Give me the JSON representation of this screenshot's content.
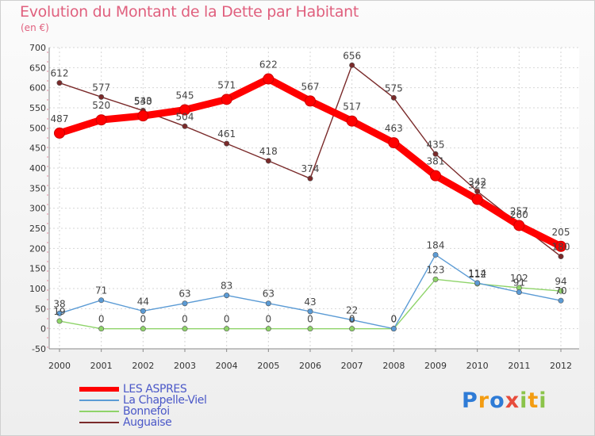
{
  "chart_data": {
    "type": "line",
    "title": "Evolution du Montant de la Dette par Habitant",
    "subtitle": "(en €)",
    "x": [
      "2000",
      "2001",
      "2002",
      "2003",
      "2004",
      "2005",
      "2006",
      "2007",
      "2008",
      "2009",
      "2010",
      "2011",
      "2012"
    ],
    "yticks": [
      "700",
      "650",
      "600",
      "550",
      "500",
      "450",
      "400",
      "350",
      "300",
      "250",
      "200",
      "150",
      "100",
      "50",
      "0",
      "-50"
    ],
    "ylim": [
      -50,
      700
    ],
    "grid": true,
    "legend_position": "bottom-left",
    "series": [
      {
        "name": "LES ASPRES",
        "color": "#ff0000",
        "values": [
          487,
          520,
          530,
          545,
          571,
          622,
          567,
          517,
          463,
          381,
          322,
          257,
          205
        ],
        "labels": [
          "487",
          "520",
          "530",
          "545",
          "571",
          "622",
          "567",
          "517",
          "463",
          "381",
          "322",
          "257",
          "205"
        ]
      },
      {
        "name": "La Chapelle-Viel",
        "color": "#5b9bd5",
        "values": [
          38,
          71,
          44,
          63,
          83,
          63,
          43,
          22,
          0,
          184,
          114,
          91,
          70
        ],
        "labels": [
          "38",
          "71",
          "44",
          "63",
          "83",
          "63",
          "43",
          "22",
          "0",
          "184",
          "114",
          "91",
          "70"
        ]
      },
      {
        "name": "Bonnefoi",
        "color": "#8fd46a",
        "values": [
          19,
          0,
          0,
          0,
          0,
          0,
          0,
          0,
          0,
          123,
          112,
          102,
          94
        ],
        "labels": [
          "19",
          "0",
          "0",
          "0",
          "0",
          "0",
          "0",
          "0",
          "0",
          "123",
          "112",
          "102",
          "94"
        ]
      },
      {
        "name": "Auguaise",
        "color": "#7a2a2a",
        "values": [
          612,
          577,
          543,
          504,
          461,
          418,
          374,
          656,
          575,
          435,
          342,
          260,
          180
        ],
        "labels": [
          "612",
          "577",
          "543",
          "504",
          "461",
          "418",
          "374",
          "656",
          "575",
          "435",
          "342",
          "260",
          "180"
        ]
      }
    ]
  },
  "logo": {
    "text": "Proxiti",
    "letters": [
      "P",
      "r",
      "o",
      "x",
      "i",
      "t",
      "i"
    ]
  }
}
